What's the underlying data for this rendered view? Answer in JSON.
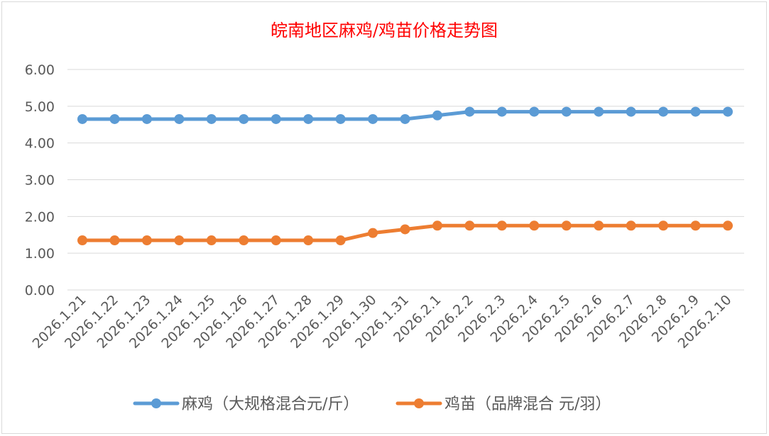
{
  "chart_data": {
    "type": "line",
    "title": "皖南地区麻鸡/鸡苗价格走势图",
    "title_color": "#FF0000",
    "categories": [
      "2026.1.21",
      "2026.1.22",
      "2026.1.23",
      "2026.1.24",
      "2026.1.25",
      "2026.1.26",
      "2026.1.27",
      "2026.1.28",
      "2026.1.29",
      "2026.1.30",
      "2026.1.31",
      "2026.2.1",
      "2026.2.2",
      "2026.2.3",
      "2026.2.4",
      "2026.2.5",
      "2026.2.6",
      "2026.2.7",
      "2026.2.8",
      "2026.2.9",
      "2026.2.10"
    ],
    "series": [
      {
        "name": "麻鸡（大规格混合元/斤）",
        "color": "#5B9BD5",
        "values": [
          4.65,
          4.65,
          4.65,
          4.65,
          4.65,
          4.65,
          4.65,
          4.65,
          4.65,
          4.65,
          4.65,
          4.75,
          4.85,
          4.85,
          4.85,
          4.85,
          4.85,
          4.85,
          4.85,
          4.85,
          4.85
        ]
      },
      {
        "name": "鸡苗（品牌混合 元/羽）",
        "color": "#ED7D31",
        "values": [
          1.35,
          1.35,
          1.35,
          1.35,
          1.35,
          1.35,
          1.35,
          1.35,
          1.35,
          1.55,
          1.65,
          1.75,
          1.75,
          1.75,
          1.75,
          1.75,
          1.75,
          1.75,
          1.75,
          1.75,
          1.75
        ]
      }
    ],
    "yticks": [
      "0.00",
      "1.00",
      "2.00",
      "3.00",
      "4.00",
      "5.00",
      "6.00"
    ],
    "ylim": [
      0,
      6
    ],
    "xlabel": "",
    "ylabel": "",
    "grid": true,
    "legend": "bottom"
  }
}
